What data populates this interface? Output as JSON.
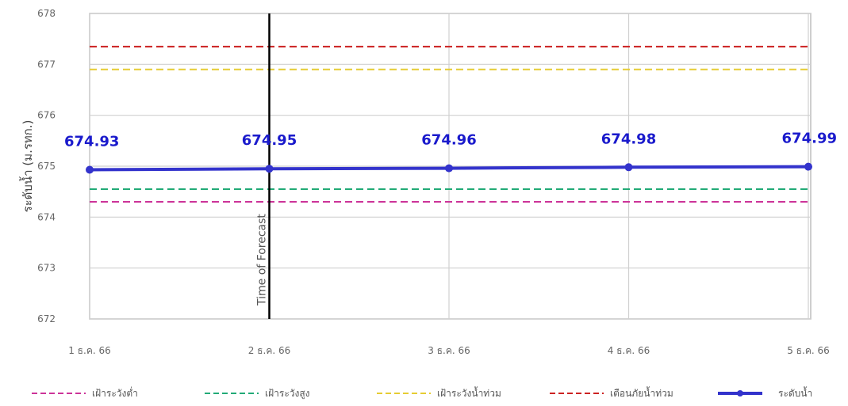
{
  "chart_data": {
    "type": "line",
    "ylabel": "ระดับน้ำ (ม.รทก.)",
    "ylim": [
      672,
      678
    ],
    "yticks": [
      672,
      673,
      674,
      675,
      676,
      677,
      678
    ],
    "categories": [
      "1 ธ.ค. 66",
      "2 ธ.ค. 66",
      "3 ธ.ค. 66",
      "4 ธ.ค. 66",
      "5 ธ.ค. 66"
    ],
    "series": [
      {
        "name": "ระดับน้ำ",
        "values": [
          674.93,
          674.95,
          674.96,
          674.98,
          674.99
        ],
        "color": "#3333cc",
        "labels": [
          "674.93",
          "674.95",
          "674.96",
          "674.98",
          "674.99"
        ]
      }
    ],
    "reference_lines": [
      {
        "name": "เฝ้าระวังต่ำ",
        "value": 674.3,
        "color": "#cc3399"
      },
      {
        "name": "เฝ้าระวังสูง",
        "value": 674.55,
        "color": "#22aa77"
      },
      {
        "name": "เฝ้าระวังน้ำท่วม",
        "value": 676.9,
        "color": "#e6cc33"
      },
      {
        "name": "เตือนภัยน้ำท่วม",
        "value": 677.35,
        "color": "#cc2222"
      }
    ],
    "forecast_marker": {
      "label": "Time of Forecast",
      "category": "2 ธ.ค. 66",
      "color": "#000000"
    },
    "grid": true,
    "legend_position": "bottom"
  }
}
